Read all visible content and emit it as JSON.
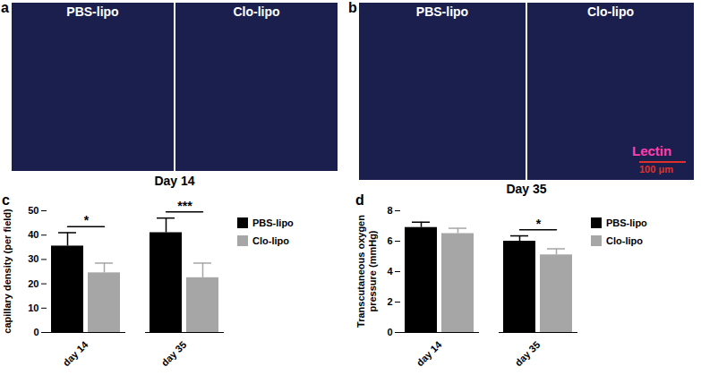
{
  "panels": [
    {
      "letter": "a",
      "labels": [
        "PBS-lipo",
        "Clo-lipo"
      ],
      "caption": "Day 14"
    },
    {
      "letter": "b",
      "labels": [
        "PBS-lipo",
        "Clo-lipo"
      ],
      "caption": "Day 35",
      "stain": "Lectin",
      "scale_bar": "100 μm"
    }
  ],
  "chart_data": [
    {
      "letter": "c",
      "type": "bar",
      "categories": [
        "day 14",
        "day 35"
      ],
      "series": [
        {
          "name": "PBS-lipo",
          "color": "#000000",
          "values": [
            35.5,
            41
          ],
          "errors": [
            5.5,
            6
          ]
        },
        {
          "name": "Clo-lipo",
          "color": "#a6a6a6",
          "values": [
            24.5,
            22.5
          ],
          "errors": [
            4,
            6
          ]
        }
      ],
      "ylabel": "capillary density (per field)",
      "ylim": [
        0,
        50
      ],
      "yticks": [
        0,
        10,
        20,
        30,
        40,
        50
      ],
      "legend": "right",
      "significance": [
        "*",
        "***"
      ]
    },
    {
      "letter": "d",
      "type": "bar",
      "categories": [
        "day 14",
        "day 35"
      ],
      "series": [
        {
          "name": "PBS-lipo",
          "color": "#000000",
          "values": [
            6.9,
            6.0
          ],
          "errors": [
            0.35,
            0.35
          ]
        },
        {
          "name": "Clo-lipo",
          "color": "#a6a6a6",
          "values": [
            6.5,
            5.1
          ],
          "errors": [
            0.35,
            0.4
          ]
        }
      ],
      "ylabel": "Transcutaneous oxygen pressure (mmHg)",
      "ylim": [
        0,
        8
      ],
      "yticks": [
        0,
        2,
        4,
        6,
        8
      ],
      "legend": "right",
      "significance": [
        null,
        "*"
      ]
    }
  ]
}
